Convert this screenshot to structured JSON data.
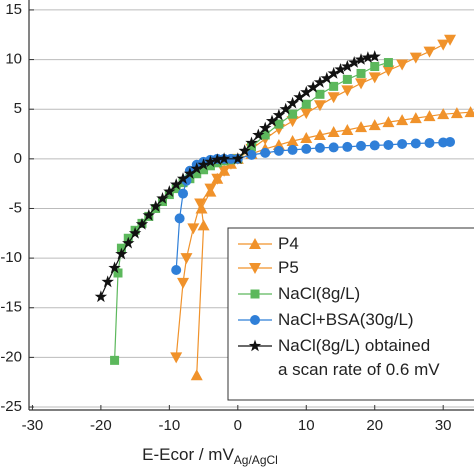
{
  "chart_data": {
    "type": "line",
    "x_label": "E-Ecor / mV",
    "x_label_sub": "Ag/AgCl",
    "xlim": [
      -30.5,
      34.5
    ],
    "xticks": [
      -30,
      -20,
      -10,
      0,
      10,
      20,
      30
    ],
    "ylim": [
      -25.3,
      16
    ],
    "yticks": [
      15,
      10,
      5,
      0,
      -5,
      -10,
      -15,
      -20,
      -25
    ],
    "grid": true,
    "legend": "lower right",
    "series": [
      {
        "name": "P4",
        "color": "#f0922b",
        "marker": "triangle-up",
        "x": [
          -6,
          -5,
          -5.3,
          -4,
          -3,
          -2,
          -1,
          0,
          2,
          4,
          6,
          8,
          10,
          12,
          14,
          16,
          18,
          20,
          22,
          24,
          26,
          28,
          30,
          32,
          34
        ],
        "values": [
          -21.8,
          -6.7,
          -5,
          -3.3,
          -2,
          -1.2,
          -0.5,
          0,
          0.5,
          1,
          1.4,
          1.8,
          2.1,
          2.4,
          2.7,
          2.9,
          3.2,
          3.4,
          3.7,
          3.9,
          4.1,
          4.3,
          4.5,
          4.6,
          4.7
        ]
      },
      {
        "name": "P5",
        "color": "#f0922b",
        "marker": "triangle-down",
        "x": [
          -9,
          -8,
          -7.5,
          -6.5,
          -5.5,
          -4,
          -3,
          -2,
          -1,
          0,
          2,
          4,
          6,
          8,
          10,
          12,
          14,
          16,
          18,
          20,
          22,
          24,
          26,
          28,
          30,
          31
        ],
        "values": [
          -20,
          -12.5,
          -10,
          -7,
          -4.5,
          -3,
          -2,
          -1.2,
          -0.5,
          0,
          1,
          2,
          3,
          3.8,
          4.6,
          5.4,
          6.2,
          6.9,
          7.6,
          8.2,
          8.9,
          9.5,
          10.2,
          10.8,
          11.5,
          12
        ]
      },
      {
        "name": "NaCl(8g/L)",
        "color": "#5cb85c",
        "marker": "square",
        "x": [
          -18,
          -17.5,
          -17,
          -16,
          -15,
          -14,
          -13,
          -12,
          -11,
          -10,
          -9,
          -8,
          -7,
          -6,
          -5,
          -4,
          -3,
          -2,
          -1,
          0,
          2,
          4,
          6,
          8,
          10,
          12,
          14,
          16,
          18,
          20,
          22
        ],
        "values": [
          -20.3,
          -11.5,
          -9,
          -8,
          -7.2,
          -6.5,
          -5.8,
          -5,
          -4.3,
          -3.6,
          -3,
          -2.4,
          -2,
          -1.5,
          -1.1,
          -0.7,
          -0.4,
          -0.2,
          -0.1,
          0,
          1.2,
          2.4,
          3.5,
          4.5,
          5.5,
          6.5,
          7.3,
          8,
          8.6,
          9.3,
          9.7
        ]
      },
      {
        "name": "NaCl+BSA(30g/L)",
        "color": "#2f7fd8",
        "marker": "circle",
        "x": [
          -9,
          -8.5,
          -8,
          -7.5,
          -7,
          -6,
          -5,
          -4,
          -3,
          -2,
          -1,
          0,
          2,
          4,
          6,
          8,
          10,
          12,
          14,
          16,
          18,
          20,
          22,
          24,
          26,
          28,
          30,
          31
        ],
        "values": [
          -11.2,
          -6,
          -3.5,
          -2.2,
          -1.2,
          -0.6,
          -0.3,
          -0.1,
          0,
          0,
          0,
          0,
          0.4,
          0.6,
          0.8,
          0.9,
          1,
          1.1,
          1.15,
          1.2,
          1.3,
          1.35,
          1.4,
          1.5,
          1.55,
          1.6,
          1.65,
          1.7
        ]
      },
      {
        "name": "NaCl(8g/L) obtained\na scan rate of 0.6 mV",
        "color": "#111111",
        "marker": "star",
        "x": [
          -20,
          -19,
          -18,
          -17,
          -16,
          -15,
          -14,
          -13,
          -12,
          -11,
          -10,
          -9,
          -8,
          -7,
          -6,
          -5,
          -4,
          -3,
          -2,
          0,
          1,
          2,
          3,
          4,
          5,
          6,
          7,
          8,
          9,
          10,
          11,
          12,
          13,
          14,
          15,
          16,
          17,
          18,
          19,
          20
        ],
        "values": [
          -13.9,
          -12.4,
          -11,
          -9.6,
          -8.5,
          -7.5,
          -6.6,
          -5.7,
          -4.8,
          -4,
          -3.3,
          -2.6,
          -2,
          -1.5,
          -1,
          -0.6,
          -0.3,
          -0.1,
          0,
          0,
          0.8,
          1.6,
          2.4,
          3.1,
          3.8,
          4.4,
          5,
          5.6,
          6.2,
          6.7,
          7.2,
          7.7,
          8.1,
          8.6,
          9,
          9.3,
          9.7,
          10,
          10.2,
          10.3
        ]
      }
    ]
  }
}
